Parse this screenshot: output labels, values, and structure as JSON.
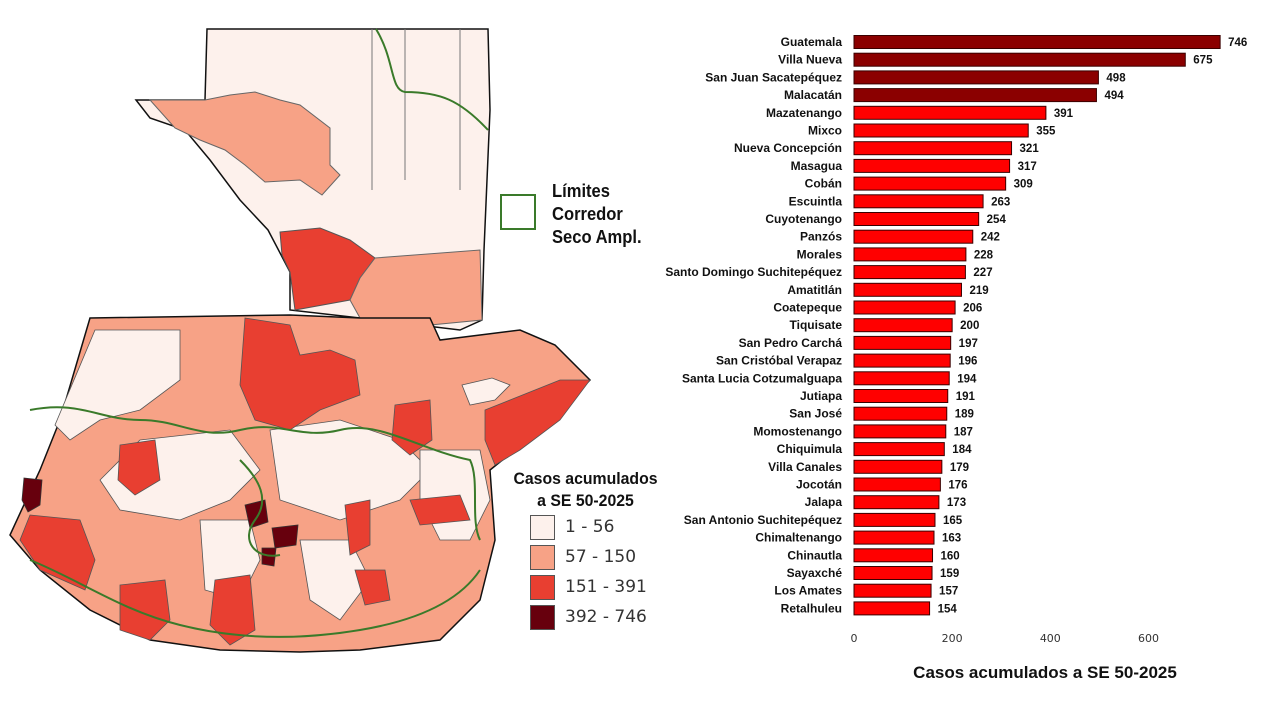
{
  "map": {
    "corridor_legend": {
      "label_lines": [
        "Límites",
        "Corredor",
        "Seco Ampl."
      ],
      "color": "#3a7a2a"
    },
    "cases_legend": {
      "title_lines": [
        "Casos acumulados",
        "a SE 50-2025"
      ],
      "classes": [
        {
          "label": "1 - 56",
          "color": "#fdf1ec"
        },
        {
          "label": "57 - 150",
          "color": "#f7a286"
        },
        {
          "label": "151 - 391",
          "color": "#e83f31"
        },
        {
          "label": "392 - 746",
          "color": "#67000d"
        }
      ]
    }
  },
  "chart_data": {
    "type": "bar",
    "orientation": "horizontal",
    "title": "",
    "xlabel": "Casos acumulados a SE 50-2025",
    "ylabel": "",
    "xlim": [
      0,
      760
    ],
    "xticks": [
      0,
      200,
      400,
      600
    ],
    "grid": false,
    "categories": [
      "Guatemala",
      "Villa Nueva",
      "San Juan Sacatepéquez",
      "Malacatán",
      "Mazatenango",
      "Mixco",
      "Nueva Concepción",
      "Masagua",
      "Cobán",
      "Escuintla",
      "Cuyotenango",
      "Panzós",
      "Morales",
      "Santo Domingo Suchitepéquez",
      "Amatitlán",
      "Coatepeque",
      "Tiquisate",
      "San Pedro Carchá",
      "San Cristóbal Verapaz",
      "Santa Lucia Cotzumalguapa",
      "Jutiapa",
      "San José",
      "Momostenango",
      "Chiquimula",
      "Villa Canales",
      "Jocotán",
      "Jalapa",
      "San Antonio Suchitepéquez",
      "Chimaltenango",
      "Chinautla",
      "Sayaxché",
      "Los Amates",
      "Retalhuleu"
    ],
    "values": [
      746,
      675,
      498,
      494,
      391,
      355,
      321,
      317,
      309,
      263,
      254,
      242,
      228,
      227,
      219,
      206,
      200,
      197,
      196,
      194,
      191,
      189,
      187,
      184,
      179,
      176,
      173,
      165,
      163,
      160,
      159,
      157,
      154
    ],
    "colors": {
      "high": "#8b0000",
      "normal": "#ff0000",
      "threshold": 392
    }
  }
}
